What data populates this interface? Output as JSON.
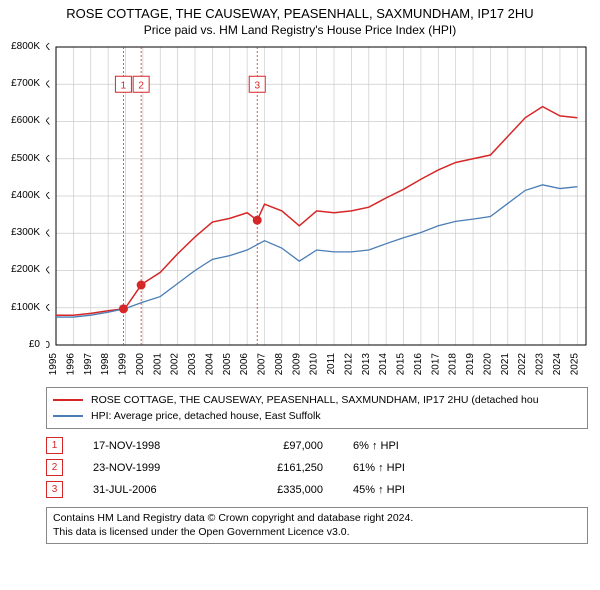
{
  "title": "ROSE COTTAGE, THE CAUSEWAY, PEASENHALL, SAXMUNDHAM, IP17 2HU",
  "subtitle": "Price paid vs. HM Land Registry's House Price Index (HPI)",
  "chart": {
    "type": "line",
    "background_color": "#ffffff",
    "grid_color": "#cccccc",
    "axis_color": "#000000",
    "tick_font_size": 10,
    "x": {
      "min": 1995,
      "max": 2025.5,
      "ticks": [
        1995,
        1996,
        1997,
        1998,
        1999,
        2000,
        2001,
        2002,
        2003,
        2004,
        2005,
        2006,
        2007,
        2008,
        2009,
        2010,
        2011,
        2012,
        2013,
        2014,
        2015,
        2016,
        2017,
        2018,
        2019,
        2020,
        2021,
        2022,
        2023,
        2024,
        2025
      ],
      "label_format": "year_rotated"
    },
    "y": {
      "min": 0,
      "max": 800,
      "ticks": [
        0,
        100,
        200,
        300,
        400,
        500,
        600,
        700,
        800
      ],
      "tick_labels": [
        "£0",
        "£100K",
        "£200K",
        "£300K",
        "£400K",
        "£500K",
        "£600K",
        "£700K",
        "£800K"
      ]
    },
    "series": [
      {
        "name": "red",
        "color": "#d62728",
        "width": 1.5,
        "points": [
          [
            1995,
            80
          ],
          [
            1996,
            80
          ],
          [
            1997,
            85
          ],
          [
            1998,
            92
          ],
          [
            1998.88,
            97
          ],
          [
            1999,
            100
          ],
          [
            1999.9,
            161
          ],
          [
            2000,
            165
          ],
          [
            2001,
            195
          ],
          [
            2002,
            245
          ],
          [
            2003,
            290
          ],
          [
            2004,
            330
          ],
          [
            2005,
            340
          ],
          [
            2006,
            355
          ],
          [
            2006.58,
            335
          ],
          [
            2007,
            378
          ],
          [
            2008,
            360
          ],
          [
            2009,
            320
          ],
          [
            2010,
            360
          ],
          [
            2011,
            355
          ],
          [
            2012,
            360
          ],
          [
            2013,
            370
          ],
          [
            2014,
            395
          ],
          [
            2015,
            418
          ],
          [
            2016,
            445
          ],
          [
            2017,
            470
          ],
          [
            2018,
            490
          ],
          [
            2019,
            500
          ],
          [
            2020,
            510
          ],
          [
            2021,
            560
          ],
          [
            2022,
            610
          ],
          [
            2023,
            640
          ],
          [
            2024,
            615
          ],
          [
            2025,
            610
          ]
        ]
      },
      {
        "name": "blue",
        "color": "#4a7db5",
        "width": 1.3,
        "points": [
          [
            1995,
            75
          ],
          [
            1996,
            75
          ],
          [
            1997,
            80
          ],
          [
            1998,
            88
          ],
          [
            1999,
            98
          ],
          [
            2000,
            115
          ],
          [
            2001,
            130
          ],
          [
            2002,
            165
          ],
          [
            2003,
            200
          ],
          [
            2004,
            230
          ],
          [
            2005,
            240
          ],
          [
            2006,
            255
          ],
          [
            2007,
            280
          ],
          [
            2008,
            260
          ],
          [
            2009,
            225
          ],
          [
            2010,
            255
          ],
          [
            2011,
            250
          ],
          [
            2012,
            250
          ],
          [
            2013,
            255
          ],
          [
            2014,
            272
          ],
          [
            2015,
            288
          ],
          [
            2016,
            302
          ],
          [
            2017,
            320
          ],
          [
            2018,
            332
          ],
          [
            2019,
            338
          ],
          [
            2020,
            345
          ],
          [
            2021,
            380
          ],
          [
            2022,
            415
          ],
          [
            2023,
            430
          ],
          [
            2024,
            420
          ],
          [
            2025,
            425
          ]
        ]
      }
    ],
    "markers": [
      {
        "id": "1",
        "x": 1998.88,
        "y": 97,
        "color": "#d62728",
        "box_y": 700
      },
      {
        "id": "2",
        "x": 1999.9,
        "y": 161,
        "color": "#d62728",
        "box_y": 700
      },
      {
        "id": "3",
        "x": 2006.58,
        "y": 335,
        "color": "#d62728",
        "box_y": 700
      }
    ]
  },
  "legend": {
    "items": [
      {
        "color": "#d62728",
        "label": "ROSE COTTAGE, THE CAUSEWAY, PEASENHALL, SAXMUNDHAM, IP17 2HU (detached hou"
      },
      {
        "color": "#4a7db5",
        "label": "HPI: Average price, detached house, East Suffolk"
      }
    ]
  },
  "marker_table": [
    {
      "id": "1",
      "color": "#d62728",
      "date": "17-NOV-1998",
      "price": "£97,000",
      "pct": "6% ↑ HPI"
    },
    {
      "id": "2",
      "color": "#d62728",
      "date": "23-NOV-1999",
      "price": "£161,250",
      "pct": "61% ↑ HPI"
    },
    {
      "id": "3",
      "color": "#d62728",
      "date": "31-JUL-2006",
      "price": "£335,000",
      "pct": "45% ↑ HPI"
    }
  ],
  "footer": {
    "line1": "Contains HM Land Registry data © Crown copyright and database right 2024.",
    "line2": "This data is licensed under the Open Government Licence v3.0."
  }
}
